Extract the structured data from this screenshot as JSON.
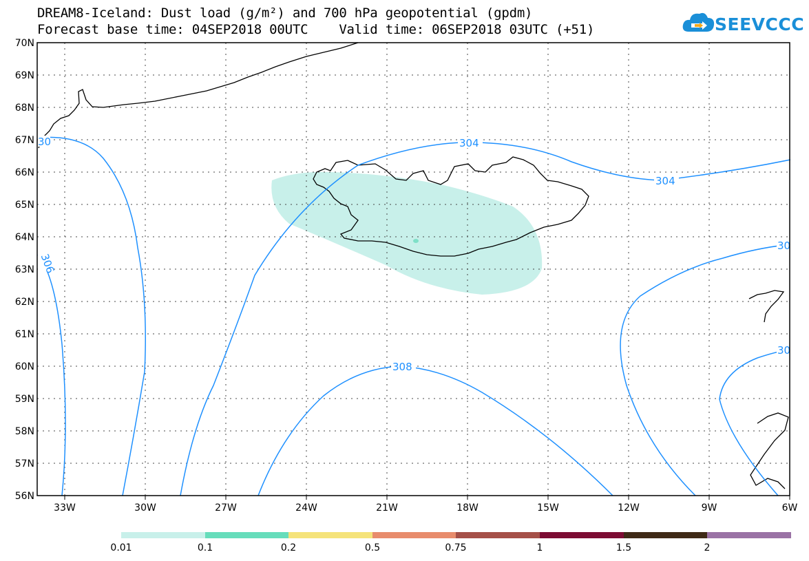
{
  "title_line1": "DREAM8-Iceland: Dust load (g/m²) and 700 hPa geopotential (gpdm)",
  "title_line2": "Forecast base time: 04SEP2018 00UTC    Valid time: 06SEP2018 03UTC (+51)",
  "logo_text": "SEEVCCC",
  "colors": {
    "contour": "#1e90ff",
    "dust_light": "#c8f0ea",
    "dust_medium": "#7fe0c8"
  },
  "chart_data": {
    "type": "map",
    "y_ticks": [
      "70N",
      "69N",
      "68N",
      "67N",
      "66N",
      "65N",
      "64N",
      "63N",
      "62N",
      "61N",
      "60N",
      "59N",
      "58N",
      "57N",
      "56N"
    ],
    "x_ticks": [
      "33W",
      "30W",
      "27W",
      "24W",
      "21W",
      "18W",
      "15W",
      "12W",
      "9W",
      "6W"
    ],
    "contour_labels": [
      "304",
      "304",
      "306",
      "30",
      "308",
      "30",
      "30"
    ],
    "legend": {
      "labels": [
        "0.01",
        "0.1",
        "0.2",
        "0.5",
        "0.75",
        "1",
        "1.5",
        "2"
      ],
      "colors": [
        "#c8f0ea",
        "#66ddbb",
        "#f5e37a",
        "#e88c6c",
        "#a55048",
        "#7c0c33",
        "#3f2a17",
        "#9a72a5"
      ]
    }
  }
}
